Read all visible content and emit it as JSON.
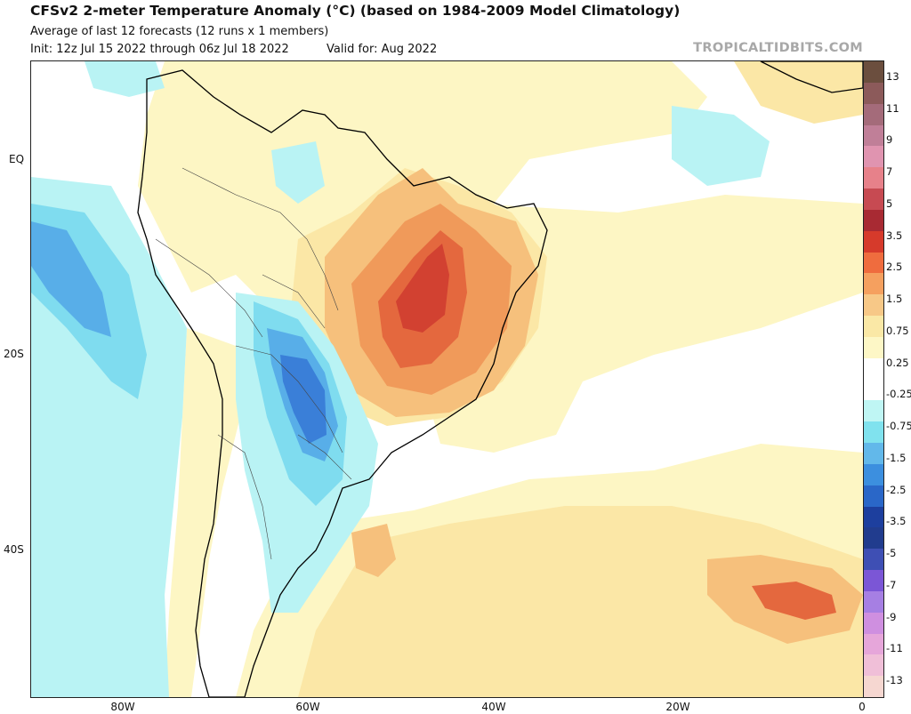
{
  "header": {
    "title": "CFSv2 2-meter Temperature Anomaly (°C) (based on 1984-2009 Model Climatology)",
    "subtitle": "Average of last 12 forecasts (12 runs x 1 members)",
    "init": "Init: 12z Jul 15 2022 through 06z Jul 18 2022",
    "valid": "Valid for: Aug 2022",
    "credit": "TROPICALTIDBITS.COM"
  },
  "axes": {
    "lat_labels": [
      "EQ",
      "20S",
      "40S"
    ],
    "lon_labels": [
      "80W",
      "60W",
      "40W",
      "20W",
      "0"
    ]
  },
  "colorbar": {
    "labels": [
      "13",
      "11",
      "9",
      "7",
      "5",
      "3.5",
      "2.5",
      "1.5",
      "0.75",
      "0.25",
      "-0.25",
      "-0.75",
      "-1.5",
      "-2.5",
      "-3.5",
      "-5",
      "-7",
      "-9",
      "-11",
      "-13"
    ],
    "colors": [
      "#6b4e3e",
      "#8c5a5a",
      "#a46b7a",
      "#c07f98",
      "#e094b0",
      "#e7818a",
      "#c74a52",
      "#a82a33",
      "#d63a2b",
      "#ef6c3e",
      "#f5a05f",
      "#f7c887",
      "#fae8a6",
      "#fdf7c6",
      "#ffffff",
      "#ffffff",
      "#bff6f4",
      "#80e2ee",
      "#62b8ea",
      "#3c8fdf",
      "#2a67c8",
      "#1d3f9e",
      "#213c8e",
      "#3e4fb4",
      "#7b56d6",
      "#a67fe3",
      "#cf8fe0",
      "#e6a6da",
      "#f0bfd8",
      "#f6d7d1"
    ]
  },
  "map": {
    "region": "South America and South Atlantic",
    "colors": {
      "warm_light": "#fdf6c4",
      "warm_mid": "#fbe7a6",
      "warm_orange": "#f6c07c",
      "warm_deep": "#f09a5a",
      "warm_red": "#e4683e",
      "warm_core": "#d24131",
      "cool_light": "#b9f3f4",
      "cool_mid": "#7fdcef",
      "cool_blue": "#58aee8",
      "cool_deep": "#3a7fd8",
      "coast": "#000000",
      "borders": "#444444"
    }
  }
}
